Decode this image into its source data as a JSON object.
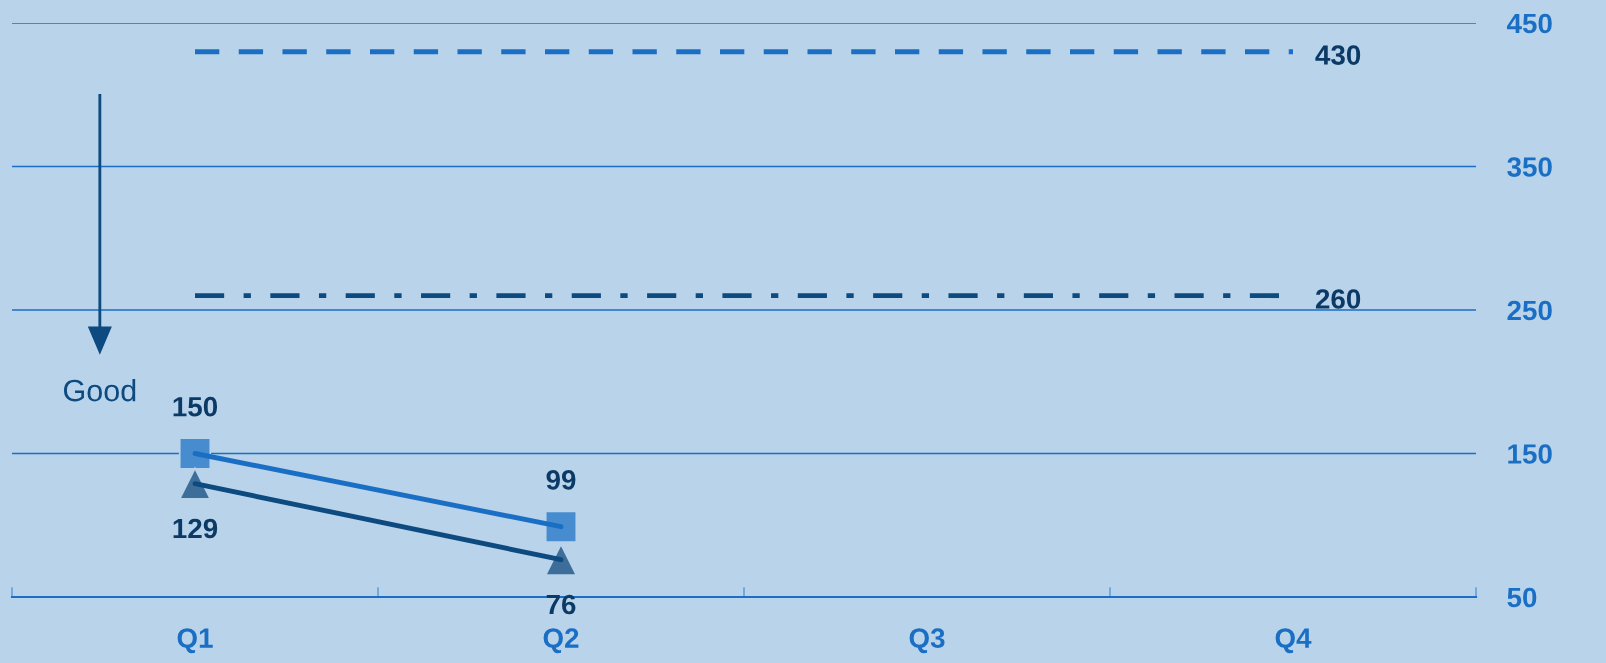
{
  "chart_data": {
    "type": "line",
    "categories": [
      "Q1",
      "Q2",
      "Q3",
      "Q4"
    ],
    "series": [
      {
        "color": "#1a6fc4",
        "values": [
          150,
          99,
          null,
          null
        ],
        "marker": "square"
      },
      {
        "color": "#0c4a80",
        "values": [
          129,
          76,
          null,
          null
        ],
        "marker": "triangle"
      }
    ],
    "ylim": [
      50,
      450
    ],
    "yticks": [
      50,
      150,
      250,
      350,
      450
    ],
    "grid": "y",
    "data_labels": true,
    "line_style": "solid",
    "ref_lines": [
      {
        "axis": "y",
        "value": 430,
        "label": "430",
        "color": "#1a6fc4",
        "line_style": "dashed"
      },
      {
        "axis": "y",
        "value": 260,
        "label": "260",
        "color": "#0c4a80",
        "line_style": "dashdot"
      }
    ],
    "annotations": [
      "Good"
    ]
  }
}
